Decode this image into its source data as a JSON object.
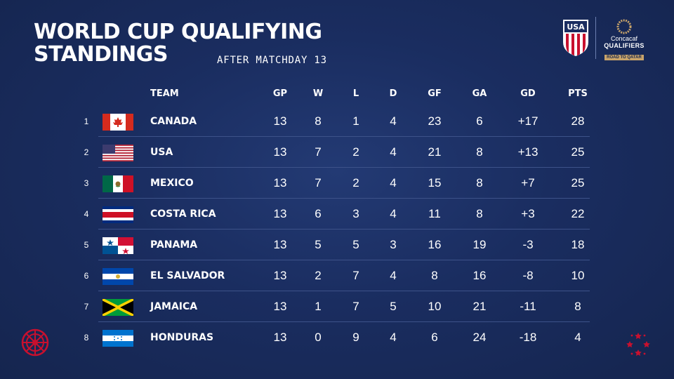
{
  "title": {
    "line1": "WORLD CUP QUALIFYING",
    "line2": "STANDINGS",
    "subtitle": "AFTER MATCHDAY 13"
  },
  "logos": {
    "usa_text": "USA",
    "concacaf_brand": "Concacaf",
    "concacaf_sub": "QUALIFIERS",
    "concacaf_tag": "ROAD TO QATAR"
  },
  "colors": {
    "background": "#1a2d60",
    "accent_red": "#c8102e",
    "gold": "#c9a46a",
    "separator": "#3d5289"
  },
  "table": {
    "headers": {
      "team": "TEAM",
      "gp": "GP",
      "w": "W",
      "l": "L",
      "d": "D",
      "gf": "GF",
      "ga": "GA",
      "gd": "GD",
      "pts": "PTS"
    },
    "rows": [
      {
        "pos": "1",
        "team": "CANADA",
        "flag": "canada-flag",
        "gp": "13",
        "w": "8",
        "l": "1",
        "d": "4",
        "gf": "23",
        "ga": "6",
        "gd": "+17",
        "pts": "28"
      },
      {
        "pos": "2",
        "team": "USA",
        "flag": "usa-flag",
        "gp": "13",
        "w": "7",
        "l": "2",
        "d": "4",
        "gf": "21",
        "ga": "8",
        "gd": "+13",
        "pts": "25"
      },
      {
        "pos": "3",
        "team": "MEXICO",
        "flag": "mexico-flag",
        "gp": "13",
        "w": "7",
        "l": "2",
        "d": "4",
        "gf": "15",
        "ga": "8",
        "gd": "+7",
        "pts": "25"
      },
      {
        "pos": "4",
        "team": "COSTA RICA",
        "flag": "costa-rica-flag",
        "gp": "13",
        "w": "6",
        "l": "3",
        "d": "4",
        "gf": "11",
        "ga": "8",
        "gd": "+3",
        "pts": "22"
      },
      {
        "pos": "5",
        "team": "PANAMA",
        "flag": "panama-flag",
        "gp": "13",
        "w": "5",
        "l": "5",
        "d": "3",
        "gf": "16",
        "ga": "19",
        "gd": "-3",
        "pts": "18"
      },
      {
        "pos": "6",
        "team": "EL SALVADOR",
        "flag": "el-salvador-flag",
        "gp": "13",
        "w": "2",
        "l": "7",
        "d": "4",
        "gf": "8",
        "ga": "16",
        "gd": "-8",
        "pts": "10"
      },
      {
        "pos": "7",
        "team": "JAMAICA",
        "flag": "jamaica-flag",
        "gp": "13",
        "w": "1",
        "l": "7",
        "d": "5",
        "gf": "10",
        "ga": "21",
        "gd": "-11",
        "pts": "8"
      },
      {
        "pos": "8",
        "team": "HONDURAS",
        "flag": "honduras-flag",
        "gp": "13",
        "w": "0",
        "l": "9",
        "d": "4",
        "gf": "6",
        "ga": "24",
        "gd": "-18",
        "pts": "4"
      }
    ]
  }
}
